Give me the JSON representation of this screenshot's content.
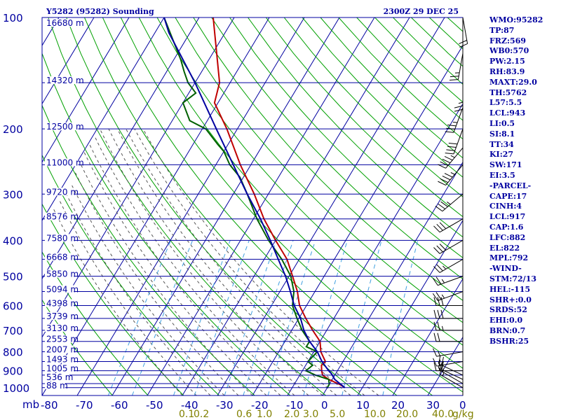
{
  "chart_data": {
    "type": "skew-t",
    "title": "Y5282 (95282) Sounding",
    "datetime": "2300Z 29 DEC 25",
    "pressure_unit": "mb",
    "pressure_levels": [
      100,
      200,
      300,
      400,
      500,
      600,
      700,
      800,
      900,
      1000
    ],
    "height_labels": [
      "16680 m",
      "14320 m",
      "12500 m",
      "11000 m",
      "9720 m",
      "8576 m",
      "7580 m",
      "6668 m",
      "5850 m",
      "5094 m",
      "4398 m",
      "3739 m",
      "3130 m",
      "2553 m",
      "2007 m",
      "1493 m",
      "1005 m",
      "536 m",
      "88 m"
    ],
    "temperature_ticks": [
      "-80",
      "-70",
      "-60",
      "-50",
      "-40",
      "-30",
      "-20",
      "-10",
      "0",
      "10",
      "20",
      "30"
    ],
    "mixing_ratio_labels": [
      "0.1",
      "0.2",
      "0.6",
      "1.0",
      "2.0",
      "3.0",
      "5.0",
      "10.0",
      "20.0",
      "40.0",
      "g/kg"
    ],
    "wind_speed_ticks": [
      "0"
    ],
    "series": [
      {
        "name": "temperature",
        "color": "#c00000",
        "points": [
          [
            1000,
            25
          ],
          [
            980,
            23
          ],
          [
            950,
            19
          ],
          [
            925,
            16.5
          ],
          [
            900,
            15.5
          ],
          [
            870,
            14.5
          ],
          [
            850,
            15
          ],
          [
            800,
            12
          ],
          [
            750,
            10
          ],
          [
            700,
            6
          ],
          [
            650,
            2
          ],
          [
            600,
            -2
          ],
          [
            550,
            -5
          ],
          [
            500,
            -9
          ],
          [
            450,
            -13.5
          ],
          [
            400,
            -20
          ],
          [
            350,
            -27
          ],
          [
            300,
            -34
          ],
          [
            250,
            -43
          ],
          [
            200,
            -53
          ],
          [
            170,
            -61
          ],
          [
            150,
            -63
          ],
          [
            100,
            -76
          ]
        ]
      },
      {
        "name": "dewpoint",
        "color": "#006000",
        "points": [
          [
            1000,
            20
          ],
          [
            980,
            20
          ],
          [
            950,
            19
          ],
          [
            925,
            14.5
          ],
          [
            900,
            11
          ],
          [
            870,
            12
          ],
          [
            850,
            10
          ],
          [
            800,
            11
          ],
          [
            775,
            7
          ],
          [
            750,
            7
          ],
          [
            700,
            3
          ],
          [
            650,
            -0.5
          ],
          [
            600,
            -4
          ],
          [
            550,
            -6
          ],
          [
            500,
            -9.5
          ],
          [
            450,
            -15
          ],
          [
            400,
            -22
          ],
          [
            350,
            -29
          ],
          [
            300,
            -36
          ],
          [
            270,
            -41
          ],
          [
            250,
            -46
          ],
          [
            230,
            -50
          ],
          [
            220,
            -53
          ],
          [
            200,
            -59
          ],
          [
            190,
            -65
          ],
          [
            170,
            -70
          ],
          [
            160,
            -68
          ],
          [
            150,
            -72
          ],
          [
            140,
            -75
          ],
          [
            130,
            -78
          ],
          [
            100,
            -90
          ]
        ]
      },
      {
        "name": "parcel",
        "color": "#0000a0",
        "points": [
          [
            1000,
            25
          ],
          [
            950,
            20.7
          ],
          [
            917,
            18.8
          ],
          [
            900,
            17.5
          ],
          [
            850,
            14
          ],
          [
            800,
            11
          ],
          [
            750,
            7
          ],
          [
            700,
            3.5
          ],
          [
            650,
            0.5
          ],
          [
            600,
            -3.5
          ],
          [
            550,
            -7
          ],
          [
            500,
            -11
          ],
          [
            450,
            -16
          ],
          [
            400,
            -21.5
          ],
          [
            350,
            -28
          ],
          [
            300,
            -36
          ],
          [
            250,
            -45
          ],
          [
            200,
            -56
          ],
          [
            150,
            -70
          ],
          [
            110,
            -86
          ],
          [
            100,
            -90
          ]
        ]
      }
    ],
    "wind_barbs": [
      {
        "p": 1000,
        "dir": 300,
        "spd": 15
      },
      {
        "p": 975,
        "dir": 300,
        "spd": 15
      },
      {
        "p": 950,
        "dir": 295,
        "spd": 20
      },
      {
        "p": 925,
        "dir": 295,
        "spd": 20
      },
      {
        "p": 900,
        "dir": 270,
        "spd": 15
      },
      {
        "p": 850,
        "dir": 260,
        "spd": 15
      },
      {
        "p": 800,
        "dir": 260,
        "spd": 15
      },
      {
        "p": 750,
        "dir": 270,
        "spd": 20
      },
      {
        "p": 700,
        "dir": 270,
        "spd": 25
      },
      {
        "p": 650,
        "dir": 270,
        "spd": 30
      },
      {
        "p": 600,
        "dir": 270,
        "spd": 30
      },
      {
        "p": 550,
        "dir": 250,
        "spd": 25
      },
      {
        "p": 500,
        "dir": 250,
        "spd": 25
      },
      {
        "p": 450,
        "dir": 240,
        "spd": 25
      },
      {
        "p": 400,
        "dir": 240,
        "spd": 30
      },
      {
        "p": 350,
        "dir": 240,
        "spd": 30
      },
      {
        "p": 300,
        "dir": 230,
        "spd": 35
      },
      {
        "p": 250,
        "dir": 220,
        "spd": 45
      },
      {
        "p": 225,
        "dir": 220,
        "spd": 45
      },
      {
        "p": 200,
        "dir": 200,
        "spd": 40
      },
      {
        "p": 175,
        "dir": 200,
        "spd": 35
      },
      {
        "p": 150,
        "dir": 180,
        "spd": 25
      },
      {
        "p": 125,
        "dir": 190,
        "spd": 25
      },
      {
        "p": 100,
        "dir": 170,
        "spd": 20
      }
    ]
  },
  "indices": [
    "WMO:95282",
    "TP:87",
    "FRZ:569",
    "WB0:570",
    "PW:2.15",
    "RH:83.9",
    "MAXT:29.0",
    "TH:5762",
    "L57:5.5",
    "LCL:943",
    "LI:0.5",
    "SI:8.1",
    "TT:34",
    "KI:27",
    "SW:171",
    "EI:3.5",
    "-PARCEL-",
    "CAPE:17",
    "CINH:4",
    "LCL:917",
    "CAP:1.6",
    "LFC:882",
    "EL:822",
    "MPL:792",
    "-WIND-",
    "STM:72/13",
    "HEL:-115",
    "SHR+:0.0",
    "SRDS:52",
    "EHI:0.0",
    "BRN:0.7",
    "BSHR:25"
  ],
  "colors": {
    "frame": "#0000a0",
    "isotherm": "#0000a0",
    "dry_adiabat": "#00a000",
    "moist_adiabat": "#555555",
    "mixing_ratio": "#40a0e0",
    "ratio_label": "#808000"
  }
}
